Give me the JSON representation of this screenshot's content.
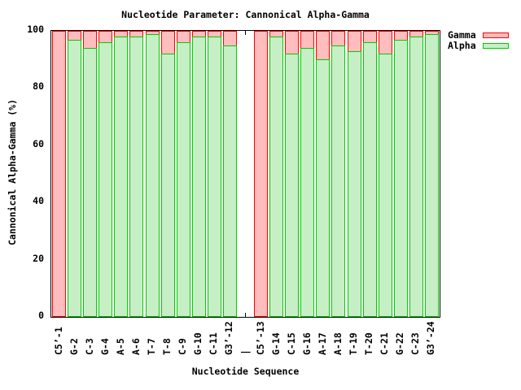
{
  "title": "Nucleotide Parameter: Cannonical Alpha-Gamma",
  "axes": {
    "x_label": "Nucleotide Sequence",
    "y_label": "Cannonical Alpha-Gamma (%)",
    "y_ticks": [
      0,
      20,
      40,
      60,
      80,
      100
    ],
    "y_range": [
      0,
      100
    ]
  },
  "legend": [
    {
      "label": "Gamma",
      "fill": "#ffbdbd",
      "border": "#ff0000"
    },
    {
      "label": "Alpha",
      "fill": "#c6efc6",
      "border": "#00cc00"
    }
  ],
  "colors": {
    "background": "#ffffff",
    "text": "#000000",
    "axis_frame": "#000000"
  },
  "chart_data": {
    "type": "bar",
    "title": "Nucleotide Parameter: Cannonical Alpha-Gamma",
    "xlabel": "Nucleotide Sequence",
    "ylabel": "Cannonical Alpha-Gamma (%)",
    "ylim": [
      0,
      100
    ],
    "grid": false,
    "legend_position": "top-right",
    "bar_style": "overlaid: Gamma bars drawn full-height (100%) behind Alpha bars; '|' is an empty strand-separator slot marked by axis ticks",
    "categories": [
      "C5’-1",
      "G-2",
      "C-3",
      "G-4",
      "A-5",
      "A-6",
      "T-7",
      "T-8",
      "C-9",
      "G-10",
      "C-11",
      "G3’-12",
      "|",
      "C5’-13",
      "G-14",
      "C-15",
      "G-16",
      "A-17",
      "A-18",
      "T-19",
      "T-20",
      "C-21",
      "G-22",
      "C-23",
      "G3’-24"
    ],
    "series": [
      {
        "name": "Gamma",
        "values": [
          100,
          100,
          100,
          100,
          100,
          100,
          100,
          100,
          100,
          100,
          100,
          100,
          null,
          100,
          100,
          100,
          100,
          100,
          100,
          100,
          100,
          100,
          100,
          100,
          100
        ]
      },
      {
        "name": "Alpha",
        "values": [
          0,
          97,
          94,
          96,
          98,
          98,
          99,
          92,
          96,
          98,
          98,
          95,
          null,
          0,
          98,
          92,
          94,
          90,
          95,
          93,
          96,
          92,
          97,
          98,
          99
        ]
      }
    ]
  }
}
